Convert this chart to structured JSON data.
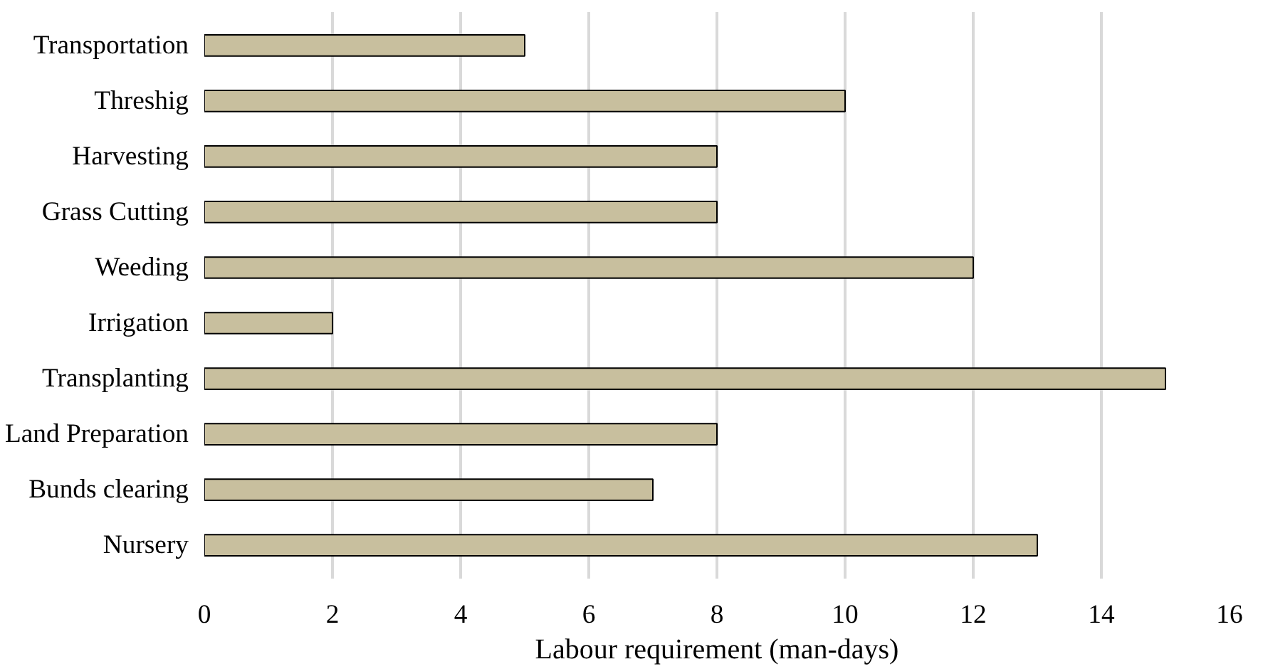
{
  "chart_data": {
    "type": "bar",
    "orientation": "horizontal",
    "xlabel": "Labour requirement (man-days)",
    "categories": [
      "Transportation",
      "Threshig",
      "Harvesting",
      "Grass Cutting",
      "Weeding",
      "Irrigation",
      "Transplanting",
      "Land Preparation",
      "Bunds clearing",
      "Nursery"
    ],
    "values": [
      5,
      10,
      8,
      8,
      12,
      2,
      15,
      8,
      7,
      13
    ],
    "color": "#c8bf9e",
    "xlim": [
      0,
      16
    ],
    "xticks": [
      0,
      2,
      4,
      6,
      8,
      10,
      12,
      14,
      16
    ],
    "grid": "x"
  }
}
